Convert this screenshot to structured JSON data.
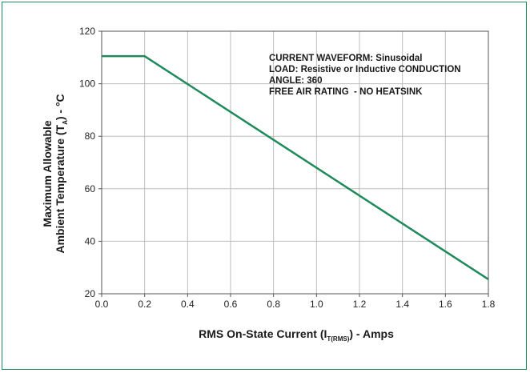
{
  "chart_data": {
    "type": "line",
    "xlabel": {
      "main": "RMS On-State Current (I",
      "sub": "T(RMS)",
      "tail": ") - Amps"
    },
    "ylabel": {
      "line1": "Maximum Allowable",
      "line2_main": "Ambient Temperature (T",
      "line2_sub": "A",
      "line2_tail": ") - °C"
    },
    "xlim": [
      0.0,
      1.8
    ],
    "ylim": [
      20,
      120
    ],
    "x_ticks": [
      0.0,
      0.2,
      0.4,
      0.6,
      0.8,
      1.0,
      1.2,
      1.4,
      1.6,
      1.8
    ],
    "x_tick_labels": [
      "0.0",
      "0.2",
      "0.4",
      "0.6",
      "0.8",
      "1.0",
      "1.2",
      "1.4",
      "1.6",
      "1.8"
    ],
    "y_ticks": [
      20,
      40,
      60,
      80,
      100,
      120
    ],
    "y_tick_labels": [
      "20",
      "40",
      "60",
      "80",
      "100",
      "120"
    ],
    "grid": true,
    "series": [
      {
        "x": [
          0.0,
          0.2,
          1.8
        ],
        "y": [
          110.5,
          110.5,
          25.5
        ],
        "color": "#1f8a5b"
      }
    ],
    "annotations": [
      "CURRENT WAVEFORM: Sinusoidal",
      "LOAD: Resistive or Inductive CONDUCTION",
      "ANGLE: 360",
      "FREE AIR RATING  - NO HEATSINK"
    ]
  },
  "colors": {
    "frame": "#1f8a5b",
    "grid": "#bdbdbd",
    "line": "#1f8a5b"
  }
}
